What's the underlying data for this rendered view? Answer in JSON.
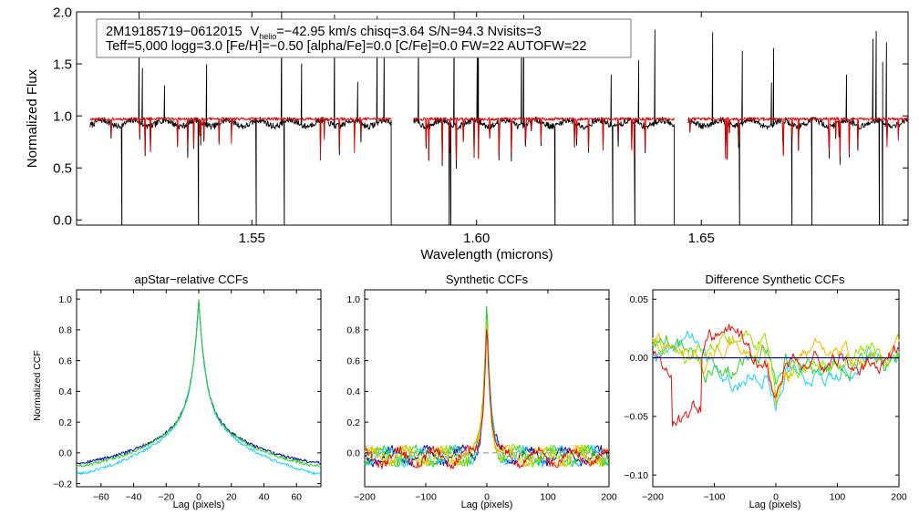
{
  "chart_data": [
    {
      "type": "line",
      "id": "spectrum",
      "ylabel": "Normalized Flux",
      "xlabel": "Wavelength (microns)",
      "xlim": [
        1.511,
        1.696
      ],
      "ylim": [
        -0.05,
        2.0
      ],
      "x_ticks": [
        {
          "value": 1.55,
          "label": "1.55"
        },
        {
          "value": 1.6,
          "label": "1.60"
        },
        {
          "value": 1.65,
          "label": "1.65"
        }
      ],
      "y_ticks": [
        {
          "value": 0.0,
          "label": "0.0"
        },
        {
          "value": 0.5,
          "label": "0.5"
        },
        {
          "value": 1.0,
          "label": "1.0"
        },
        {
          "value": 1.5,
          "label": "1.5"
        },
        {
          "value": 2.0,
          "label": "2.0"
        }
      ],
      "legend": {
        "line1_star": "2M19185719−0612015",
        "line1_v": "V",
        "line1_v_sub": "helio",
        "line1_rest": "=−42.95 km/s  chisq=3.64  S/N=94.3  Nvisits=3",
        "line2": "Teff=5,000 logg=3.0 [Fe/H]=−0.50 [alpha/Fe]=0.0 [C/Fe]=0.0 FW=22 AUTOFW=22"
      },
      "chips": [
        [
          1.514,
          1.581
        ],
        [
          1.586,
          1.644
        ],
        [
          1.647,
          1.696
        ]
      ],
      "series": [
        {
          "name": "observed",
          "color": "#000000",
          "continuum": 0.93
        },
        {
          "name": "model",
          "color": "#dd0000",
          "continuum": 0.97
        }
      ]
    },
    {
      "type": "line",
      "id": "apstar_ccf",
      "title": "apStar−relative CCFs",
      "ylabel": "Normalized CCF",
      "xlabel": "Lag (pixels)",
      "xlim": [
        -75,
        75
      ],
      "ylim": [
        -0.22,
        1.06
      ],
      "x_ticks": [
        {
          "value": -60,
          "label": "−60"
        },
        {
          "value": -40,
          "label": "−40"
        },
        {
          "value": -20,
          "label": "−20"
        },
        {
          "value": 0,
          "label": "0"
        },
        {
          "value": 20,
          "label": "20"
        },
        {
          "value": 40,
          "label": "40"
        },
        {
          "value": 60,
          "label": "60"
        }
      ],
      "y_ticks": [
        {
          "value": -0.2,
          "label": "−0.2"
        },
        {
          "value": 0.0,
          "label": "0.0"
        },
        {
          "value": 0.2,
          "label": "0.2"
        },
        {
          "value": 0.4,
          "label": "0.4"
        },
        {
          "value": 0.6,
          "label": "0.6"
        },
        {
          "value": 0.8,
          "label": "0.8"
        },
        {
          "value": 1.0,
          "label": "1.0"
        }
      ],
      "series": [
        {
          "name": "visit 1",
          "color": "#000099",
          "peak": 0.99,
          "wing": -0.08
        },
        {
          "name": "visit 2",
          "color": "#22ccff",
          "peak": 0.97,
          "wing": -0.15
        },
        {
          "name": "visit 3",
          "color": "#33cc33",
          "peak": 1.0,
          "wing": -0.1
        }
      ]
    },
    {
      "type": "line",
      "id": "synthetic_ccf",
      "title": "Synthetic CCFs",
      "xlabel": "Lag (pixels)",
      "xlim": [
        -200,
        200
      ],
      "ylim": [
        -0.22,
        1.06
      ],
      "x_ticks": [
        {
          "value": -200,
          "label": "−200"
        },
        {
          "value": -100,
          "label": "−100"
        },
        {
          "value": 0,
          "label": "0"
        },
        {
          "value": 100,
          "label": "100"
        },
        {
          "value": 200,
          "label": "200"
        }
      ],
      "y_ticks": [
        {
          "value": 0.0,
          "label": "0.0"
        },
        {
          "value": 0.2,
          "label": "0.2"
        },
        {
          "value": 0.4,
          "label": "0.4"
        },
        {
          "value": 0.6,
          "label": "0.6"
        },
        {
          "value": 0.8,
          "label": "0.8"
        },
        {
          "value": 1.0,
          "label": "1.0"
        }
      ],
      "zero_line": 0.0,
      "series": [
        {
          "name": "visit 1",
          "color": "#000099"
        },
        {
          "name": "visit 2",
          "color": "#22ccff"
        },
        {
          "name": "visit 3",
          "color": "#33cc33"
        },
        {
          "name": "visit 4",
          "color": "#99dd00"
        },
        {
          "name": "visit 5",
          "color": "#eebb00"
        },
        {
          "name": "visit 6",
          "color": "#dd1111"
        }
      ]
    },
    {
      "type": "line",
      "id": "diff_ccf",
      "title": "Difference Synthetic CCFs",
      "xlabel": "Lag (pixels)",
      "xlim": [
        -200,
        200
      ],
      "ylim": [
        -0.11,
        0.058
      ],
      "x_ticks": [
        {
          "value": -200,
          "label": "−200"
        },
        {
          "value": -100,
          "label": "−100"
        },
        {
          "value": 0,
          "label": "0"
        },
        {
          "value": 100,
          "label": "100"
        },
        {
          "value": 200,
          "label": "200"
        }
      ],
      "y_ticks": [
        {
          "value": -0.1,
          "label": "−0.10"
        },
        {
          "value": -0.05,
          "label": "−0.05"
        },
        {
          "value": 0.0,
          "label": "0.00"
        },
        {
          "value": 0.05,
          "label": "0.05"
        }
      ],
      "zero_line": 0.0,
      "series": [
        {
          "name": "visit 1",
          "color": "#000099"
        },
        {
          "name": "visit 2",
          "color": "#22ccff"
        },
        {
          "name": "visit 3",
          "color": "#33cc33"
        },
        {
          "name": "visit 4",
          "color": "#99dd00"
        },
        {
          "name": "visit 5",
          "color": "#eebb00"
        },
        {
          "name": "visit 6",
          "color": "#dd1111"
        }
      ]
    }
  ]
}
